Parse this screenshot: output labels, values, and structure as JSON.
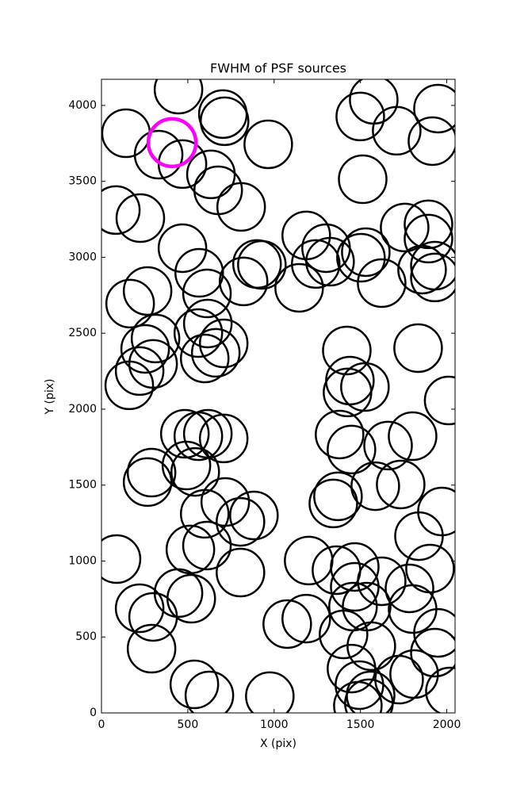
{
  "chart_data": {
    "type": "scatter",
    "title": "FWHM of PSF sources",
    "x_label": "X (pix)",
    "y_label": "Y (pix)",
    "xlim": [
      0,
      2048
    ],
    "ylim": [
      0,
      4172
    ],
    "xticks": [
      0,
      500,
      1000,
      1500,
      2000
    ],
    "yticks": [
      0,
      500,
      1000,
      1500,
      2000,
      2500,
      3000,
      3500,
      4000
    ],
    "marker": "open-circle",
    "series": [
      {
        "color": "#000000",
        "x": [
          446,
          142,
          331,
          469,
          703,
          713,
          966,
          634,
          676,
          809,
          83,
          225,
          469,
          566,
          611,
          267,
          166,
          823,
          901,
          929,
          616,
          561,
          708,
          662,
          598,
          313,
          253,
          299,
          221,
          161,
          483,
          616,
          561,
          708,
          290,
          267,
          492,
          543,
          598,
          717,
          805,
          883,
          87,
          515,
          611,
          805,
          446,
          520,
          221,
          299,
          290,
          538,
          625,
          975,
          1076,
          1186,
          1200,
          1361,
          1467,
          1467,
          1457,
          1536,
          1623,
          1402,
          1563,
          1448,
          1494,
          1485,
          1559,
          1724,
          1811,
          1802,
          1784,
          1903,
          1839,
          1972,
          1949,
          1931,
          2018,
          1343,
          1370,
          1586,
          1733,
          1448,
          1379,
          1660,
          1802,
          1425,
          1439,
          1526,
          1421,
          1834,
          2011,
          1145,
          1241,
          1186,
          1301,
          1324,
          1503,
          1531,
          1623,
          1756,
          1894,
          1894,
          1857,
          1931,
          1931,
          1513,
          1499,
          1577,
          1710,
          1949,
          1917,
          1549
        ],
        "y": [
          4104,
          3817,
          3676,
          3614,
          3943,
          3896,
          3744,
          3546,
          3441,
          3332,
          3311,
          3258,
          3060,
          2898,
          2762,
          2778,
          2695,
          2841,
          2956,
          2950,
          2564,
          2501,
          2433,
          2371,
          2334,
          2465,
          2397,
          2298,
          2251,
          2157,
          1838,
          1838,
          1822,
          1807,
          1582,
          1520,
          1629,
          1587,
          1311,
          1389,
          1258,
          1300,
          1013,
          1076,
          1102,
          924,
          789,
          752,
          689,
          632,
          423,
          188,
          115,
          110,
          585,
          621,
          1003,
          940,
          961,
          830,
          700,
          700,
          867,
          517,
          439,
          292,
          183,
          47,
          115,
          219,
          256,
          684,
          820,
          950,
          1164,
          1326,
          527,
          397,
          141,
          1379,
          1426,
          1493,
          1504,
          1734,
          1833,
          1760,
          1822,
          2110,
          2188,
          2146,
          2386,
          2402,
          2057,
          2799,
          2956,
          3144,
          3060,
          2971,
          2997,
          3034,
          2830,
          3196,
          3217,
          3123,
          2919,
          2945,
          2867,
          3514,
          3927,
          4037,
          3833,
          3979,
          3765,
          63
        ]
      },
      {
        "color": "#ff00ff",
        "x": [
          409
        ],
        "y": [
          3755
        ]
      }
    ]
  }
}
